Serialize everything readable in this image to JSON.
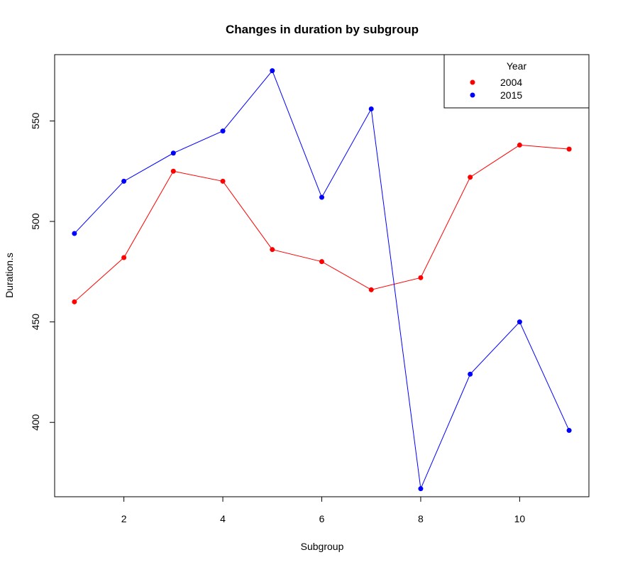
{
  "chart_data": {
    "type": "line",
    "title": "Changes in duration by subgroup",
    "xlabel": "Subgroup",
    "ylabel": "Duration.s",
    "xlim": [
      0.6,
      11.4
    ],
    "ylim": [
      363,
      583
    ],
    "x_ticks": [
      2,
      4,
      6,
      8,
      10
    ],
    "y_ticks": [
      400,
      450,
      500,
      550
    ],
    "x": [
      1,
      2,
      3,
      4,
      5,
      6,
      7,
      8,
      9,
      10,
      11
    ],
    "legend": {
      "title": "Year",
      "placement": "top-right"
    },
    "series": [
      {
        "name": "2004",
        "color": "#ff0000",
        "values": [
          460,
          482,
          525,
          520,
          486,
          480,
          466,
          472,
          522,
          538,
          536
        ]
      },
      {
        "name": "2015",
        "color": "#0000ff",
        "values": [
          494,
          520,
          534,
          545,
          575,
          512,
          556,
          367,
          424,
          450,
          396
        ]
      }
    ],
    "grid": false
  }
}
